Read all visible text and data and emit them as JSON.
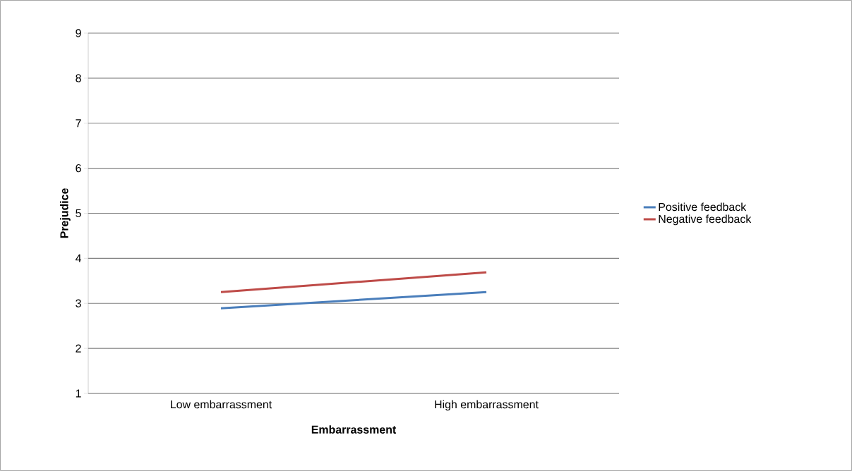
{
  "chart_data": {
    "type": "line",
    "xlabel": "Embarrassment",
    "ylabel": "Prejudice",
    "categories": [
      "Low embarrassment",
      "High embarrassment"
    ],
    "series": [
      {
        "name": "Positive feedback",
        "color": "#4a7ebb",
        "values": [
          2.89,
          3.25
        ]
      },
      {
        "name": "Negative feedback",
        "color": "#be4b48",
        "values": [
          3.25,
          3.69
        ]
      }
    ],
    "ylim": [
      1,
      9
    ],
    "yticks": [
      1,
      2,
      3,
      4,
      5,
      6,
      7,
      8,
      9
    ],
    "grid": "y",
    "legend": "right",
    "marker": "none",
    "line_style": "solid"
  }
}
